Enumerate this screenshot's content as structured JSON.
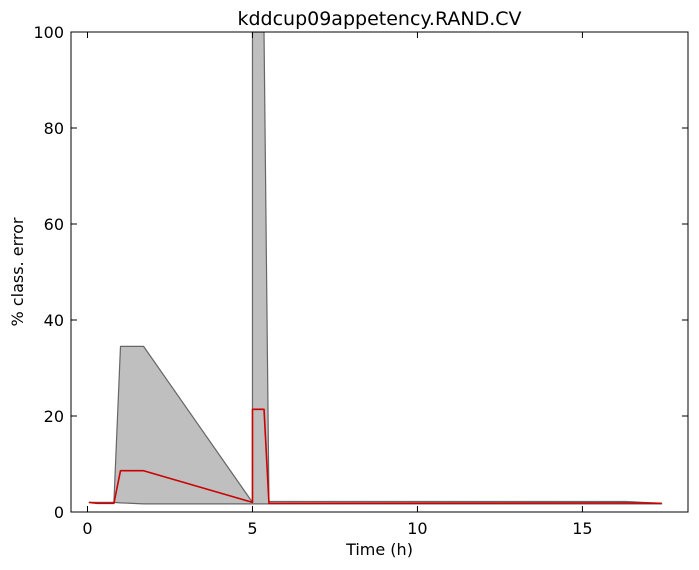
{
  "chart_data": {
    "type": "area",
    "title": "kddcup09appetency.RAND.CV",
    "xlabel": "Time (h)",
    "ylabel": "% class. error",
    "xlim": [
      -0.5,
      18.2
    ],
    "ylim": [
      0,
      100
    ],
    "xticks": [
      0,
      5,
      10,
      15
    ],
    "xtick_labels": [
      "0",
      "5",
      "10",
      "15"
    ],
    "yticks": [
      0,
      20,
      40,
      60,
      80,
      100
    ],
    "ytick_labels": [
      "0",
      "20",
      "40",
      "60",
      "80",
      "100"
    ],
    "grid": false,
    "colors": {
      "band_fill": "#bfbfbf",
      "band_edge": "#666666",
      "median": "#cc0000"
    },
    "series": [
      {
        "kind": "band",
        "x": [
          0.05,
          0.8,
          1.0,
          1.7,
          5.0,
          5.0,
          5.35,
          5.5,
          5.5,
          16.3,
          17.4
        ],
        "upper": [
          2.0,
          2.0,
          34.5,
          34.5,
          2.0,
          100,
          100,
          2.2,
          2.2,
          2.2,
          1.8
        ],
        "lower": [
          2.0,
          2.0,
          1.9,
          1.7,
          1.7,
          1.7,
          1.7,
          1.7,
          1.7,
          1.7,
          1.7
        ]
      },
      {
        "kind": "line",
        "x": [
          0.05,
          0.3,
          0.8,
          1.0,
          1.7,
          5.0,
          5.0,
          5.35,
          5.5,
          16.3,
          17.4
        ],
        "y": [
          2.0,
          1.8,
          1.8,
          8.6,
          8.6,
          2.0,
          21.4,
          21.4,
          1.8,
          1.9,
          1.8
        ]
      }
    ]
  }
}
